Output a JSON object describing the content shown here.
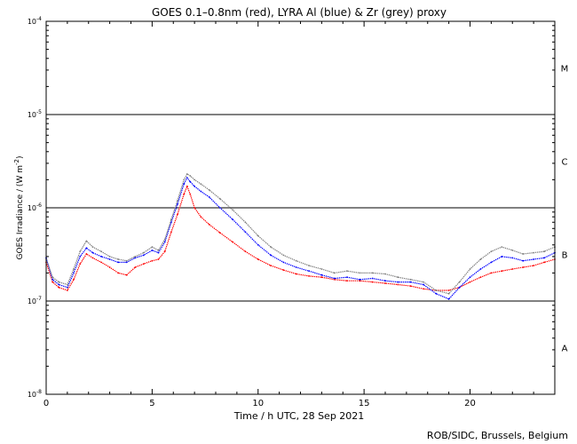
{
  "chart_data": {
    "type": "line",
    "title": "GOES 0.1–0.8nm (red), LYRA Al (blue) & Zr (grey) proxy",
    "xlabel": "Time / h UTC, 28 Sep 2021",
    "ylabel_main": "GOES Irradiance / (W m",
    "ylabel_sup": "-2",
    "ylabel_close": ")",
    "xlim": [
      0,
      24
    ],
    "ylim_log10": [
      -8,
      -4
    ],
    "y_scale": "log",
    "x_ticks": [
      0,
      5,
      10,
      15,
      20
    ],
    "y_ticks_exp": [
      -8,
      -7,
      -6,
      -5,
      -4
    ],
    "y_tick_base": "10",
    "flare_class_lines_exp": [
      -7,
      -6,
      -5
    ],
    "flare_classes": [
      {
        "label": "A",
        "center_exp": -7.5
      },
      {
        "label": "B",
        "center_exp": -6.5
      },
      {
        "label": "C",
        "center_exp": -5.5
      },
      {
        "label": "M",
        "center_exp": -4.5
      }
    ],
    "footer": "ROB/SIDC, Brussels, Belgium",
    "series": [
      {
        "name": "GOES 0.1-0.8nm",
        "color": "#ff0000",
        "x": [
          0,
          0.3,
          0.6,
          1.0,
          1.3,
          1.6,
          1.9,
          2.2,
          2.6,
          3.0,
          3.4,
          3.8,
          4.2,
          4.6,
          5.0,
          5.3,
          5.6,
          5.9,
          6.2,
          6.5,
          6.65,
          6.8,
          7.0,
          7.3,
          7.7,
          8.2,
          8.8,
          9.4,
          10.0,
          10.6,
          11.2,
          11.8,
          12.4,
          13.0,
          13.6,
          14.2,
          14.8,
          15.4,
          16.0,
          16.6,
          17.2,
          17.8,
          18.4,
          19.0,
          19.5,
          20.0,
          20.5,
          21.0,
          21.5,
          22.0,
          22.5,
          23.0,
          23.5,
          24.0
        ],
        "y": [
          2.6e-07,
          1.6e-07,
          1.4e-07,
          1.3e-07,
          1.7e-07,
          2.5e-07,
          3.2e-07,
          2.9e-07,
          2.6e-07,
          2.3e-07,
          2e-07,
          1.9e-07,
          2.3e-07,
          2.5e-07,
          2.7e-07,
          2.8e-07,
          3.4e-07,
          5.5e-07,
          8.5e-07,
          1.4e-06,
          1.7e-06,
          1.4e-06,
          1e-06,
          8e-07,
          6.6e-07,
          5.4e-07,
          4.3e-07,
          3.4e-07,
          2.8e-07,
          2.4e-07,
          2.15e-07,
          1.95e-07,
          1.85e-07,
          1.8e-07,
          1.7e-07,
          1.65e-07,
          1.65e-07,
          1.6e-07,
          1.55e-07,
          1.5e-07,
          1.45e-07,
          1.35e-07,
          1.3e-07,
          1.3e-07,
          1.4e-07,
          1.6e-07,
          1.8e-07,
          2e-07,
          2.1e-07,
          2.2e-07,
          2.3e-07,
          2.4e-07,
          2.6e-07,
          2.8e-07
        ]
      },
      {
        "name": "LYRA Al proxy",
        "color": "#0000ff",
        "x": [
          0,
          0.3,
          0.6,
          1.0,
          1.3,
          1.6,
          1.9,
          2.2,
          2.6,
          3.0,
          3.4,
          3.8,
          4.2,
          4.6,
          5.0,
          5.3,
          5.6,
          5.9,
          6.2,
          6.5,
          6.65,
          6.8,
          7.0,
          7.3,
          7.7,
          8.2,
          8.8,
          9.4,
          10.0,
          10.6,
          11.2,
          11.8,
          12.4,
          13.0,
          13.6,
          14.2,
          14.8,
          15.4,
          16.0,
          16.6,
          17.2,
          17.8,
          18.4,
          19.0,
          19.5,
          20.0,
          20.5,
          21.0,
          21.5,
          22.0,
          22.5,
          23.0,
          23.5,
          24.0
        ],
        "y": [
          2.9e-07,
          1.7e-07,
          1.5e-07,
          1.4e-07,
          2e-07,
          3e-07,
          3.7e-07,
          3.3e-07,
          3e-07,
          2.8e-07,
          2.6e-07,
          2.6e-07,
          2.9e-07,
          3.1e-07,
          3.5e-07,
          3.3e-07,
          4.3e-07,
          7e-07,
          1.1e-06,
          1.8e-06,
          2.1e-06,
          1.9e-06,
          1.7e-06,
          1.5e-06,
          1.3e-06,
          1e-06,
          7.5e-07,
          5.5e-07,
          4e-07,
          3.1e-07,
          2.6e-07,
          2.3e-07,
          2.1e-07,
          1.9e-07,
          1.75e-07,
          1.8e-07,
          1.7e-07,
          1.75e-07,
          1.65e-07,
          1.6e-07,
          1.6e-07,
          1.5e-07,
          1.2e-07,
          1.05e-07,
          1.4e-07,
          1.8e-07,
          2.2e-07,
          2.6e-07,
          3e-07,
          2.9e-07,
          2.7e-07,
          2.8e-07,
          2.9e-07,
          3.3e-07
        ]
      },
      {
        "name": "LYRA Zr proxy",
        "color": "#808080",
        "x": [
          0,
          0.3,
          0.6,
          1.0,
          1.3,
          1.6,
          1.9,
          2.2,
          2.6,
          3.0,
          3.4,
          3.8,
          4.2,
          4.6,
          5.0,
          5.3,
          5.6,
          5.9,
          6.2,
          6.5,
          6.65,
          6.8,
          7.0,
          7.3,
          7.7,
          8.2,
          8.8,
          9.4,
          10.0,
          10.6,
          11.2,
          11.8,
          12.4,
          13.0,
          13.6,
          14.2,
          14.8,
          15.4,
          16.0,
          16.6,
          17.2,
          17.8,
          18.4,
          19.0,
          19.5,
          20.0,
          20.5,
          21.0,
          21.5,
          22.0,
          22.5,
          23.0,
          23.5,
          24.0
        ],
        "y": [
          2.8e-07,
          1.8e-07,
          1.6e-07,
          1.5e-07,
          2.2e-07,
          3.4e-07,
          4.4e-07,
          3.8e-07,
          3.4e-07,
          3e-07,
          2.8e-07,
          2.7e-07,
          3e-07,
          3.3e-07,
          3.8e-07,
          3.5e-07,
          4.6e-07,
          7.5e-07,
          1.2e-06,
          2e-06,
          2.3e-06,
          2.2e-06,
          2e-06,
          1.8e-06,
          1.55e-06,
          1.25e-06,
          9.5e-07,
          7e-07,
          5e-07,
          3.8e-07,
          3.1e-07,
          2.7e-07,
          2.4e-07,
          2.2e-07,
          2e-07,
          2.1e-07,
          2e-07,
          2e-07,
          1.95e-07,
          1.8e-07,
          1.7e-07,
          1.6e-07,
          1.3e-07,
          1.2e-07,
          1.6e-07,
          2.2e-07,
          2.8e-07,
          3.4e-07,
          3.8e-07,
          3.5e-07,
          3.2e-07,
          3.3e-07,
          3.4e-07,
          3.8e-07
        ]
      }
    ]
  }
}
